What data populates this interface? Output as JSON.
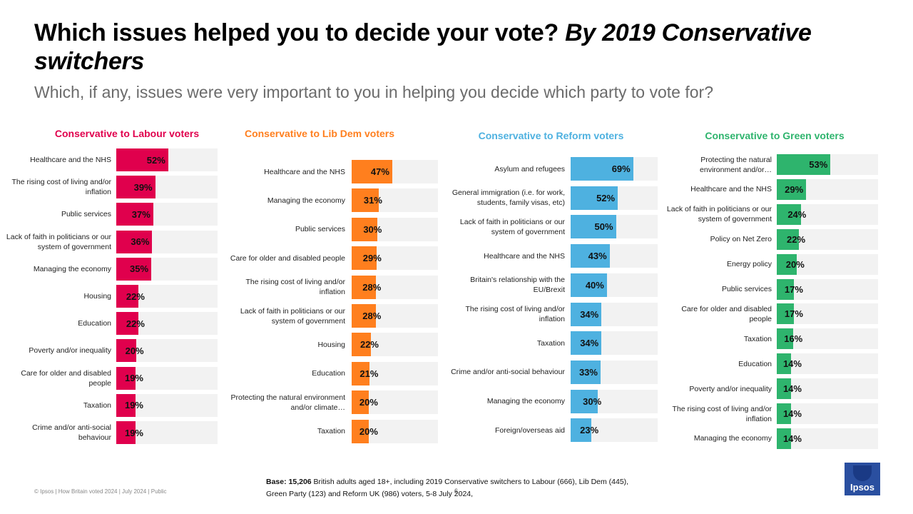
{
  "title": {
    "main": "Which issues helped you to decide your vote? ",
    "italic": "By 2019 Conservative switchers"
  },
  "subtitle": "Which, if any, issues were very important to you in helping you decide which party to vote for?",
  "footer": {
    "copyright": "© Ipsos | How Britain voted 2024 | July 2024 | Public",
    "base_label": "Base: 15,206",
    "base_text": " British adults aged 18+, including 2019 Conservative switchers to Labour (666), Lib Dem (445), Green Party (123) and Reform UK (986) voters, 5-8 July 2024,",
    "page_number": "6",
    "logo": "Ipsos"
  },
  "chart_data": [
    {
      "type": "bar",
      "title": "Conservative to Labour voters",
      "color": "#e0004d",
      "categories": [
        "Healthcare and the NHS",
        "The rising cost of living and/or inflation",
        "Public services",
        "Lack of faith in politicians or our system of government",
        "Managing the economy",
        "Housing",
        "Education",
        "Poverty and/or inequality",
        "Care for older and disabled people",
        "Taxation",
        "Crime and/or anti-social behaviour"
      ],
      "values": [
        52,
        39,
        37,
        36,
        35,
        22,
        22,
        20,
        19,
        19,
        19
      ],
      "labels": [
        "52%",
        "39%",
        "37%",
        "36%",
        "35%",
        "22%",
        "22%",
        "20%",
        "19%",
        "19%",
        "19%"
      ],
      "xlim": [
        0,
        100
      ]
    },
    {
      "type": "bar",
      "title": "Conservative to Lib Dem voters",
      "color": "#ff7f1e",
      "categories": [
        "Healthcare and the NHS",
        "Managing the economy",
        "Public services",
        "Care for older and disabled people",
        "The rising cost of living and/or inflation",
        "Lack of faith in politicians or our system of government",
        "Housing",
        "Education",
        "Protecting the natural environment and/or climate…",
        "Taxation"
      ],
      "values": [
        47,
        31,
        30,
        29,
        28,
        28,
        22,
        21,
        20,
        20
      ],
      "labels": [
        "47%",
        "31%",
        "30%",
        "29%",
        "28%",
        "28%",
        "22%",
        "21%",
        "20%",
        "20%"
      ],
      "xlim": [
        0,
        100
      ]
    },
    {
      "type": "bar",
      "title": "Conservative to Reform voters",
      "color": "#4eb1e0",
      "categories": [
        "Asylum and refugees",
        "General immigration (i.e. for work, students, family visas, etc)",
        "Lack of faith in politicians or our system of government",
        "Healthcare and the NHS",
        "Britain's relationship with the EU/Brexit",
        "The rising cost of living and/or inflation",
        "Taxation",
        "Crime and/or anti-social behaviour",
        "Managing the economy",
        "Foreign/overseas aid"
      ],
      "values": [
        69,
        52,
        50,
        43,
        40,
        34,
        34,
        33,
        30,
        23
      ],
      "labels": [
        "69%",
        "52%",
        "50%",
        "43%",
        "40%",
        "34%",
        "34%",
        "33%",
        "30%",
        "23%"
      ],
      "xlim": [
        0,
        100
      ]
    },
    {
      "type": "bar",
      "title": "Conservative to Green voters",
      "color": "#2eb46d",
      "categories": [
        "Protecting the natural environment and/or…",
        "Healthcare and the NHS",
        "Lack of faith in politicians or our system of government",
        "Policy on Net Zero",
        "Energy policy",
        "Public services",
        "Care for older and disabled people",
        "Taxation",
        "Education",
        "Poverty and/or inequality",
        "The rising cost of living and/or inflation",
        "Managing the economy"
      ],
      "values": [
        53,
        29,
        24,
        22,
        20,
        17,
        17,
        16,
        14,
        14,
        14,
        14
      ],
      "labels": [
        "53%",
        "29%",
        "24%",
        "22%",
        "20%",
        "17%",
        "17%",
        "16%",
        "14%",
        "14%",
        "14%",
        "14%"
      ],
      "xlim": [
        0,
        100
      ]
    }
  ]
}
